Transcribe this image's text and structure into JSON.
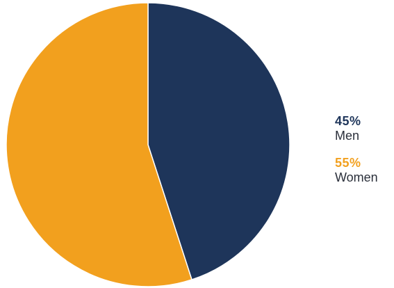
{
  "chart_data": {
    "type": "pie",
    "slices": [
      {
        "label": "Men",
        "value": 45,
        "value_label": "45%",
        "color": "#1e355a"
      },
      {
        "label": "Women",
        "value": 55,
        "value_label": "55%",
        "color": "#f2a01e"
      }
    ],
    "legend_position": "right"
  }
}
